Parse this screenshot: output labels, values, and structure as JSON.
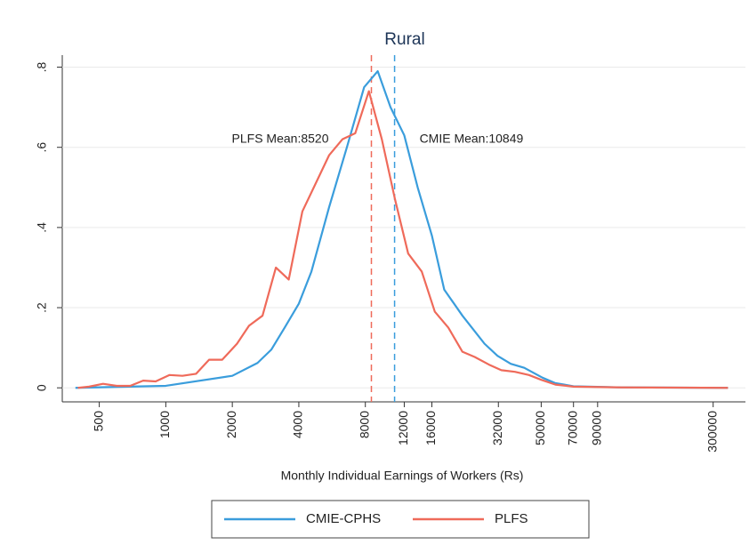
{
  "chart_data": {
    "type": "line",
    "title": "Rural",
    "x_label": "Monthly Individual Earnings of Workers (Rs)",
    "x_log": true,
    "xlim": [
      340,
      420000
    ],
    "xticks": [
      500,
      1000,
      2000,
      4000,
      8000,
      12000,
      16000,
      32000,
      50000,
      70000,
      90000,
      300000
    ],
    "ylim": [
      -0.035,
      0.83
    ],
    "yticks": [
      {
        "value": 0,
        "label": "0"
      },
      {
        "value": 0.2,
        "label": ".2"
      },
      {
        "value": 0.4,
        "label": ".4"
      },
      {
        "value": 0.6,
        "label": ".6"
      },
      {
        "value": 0.8,
        "label": ".8"
      }
    ],
    "legend": "bottom",
    "series": [
      {
        "name": "CMIE-CPHS",
        "color": "#3a9ddc",
        "x": [
          390,
          1000,
          2000,
          2600,
          3000,
          3450,
          4000,
          4560,
          5480,
          6600,
          7900,
          9100,
          10400,
          12000,
          13800,
          16000,
          18200,
          22000,
          27700,
          31700,
          36400,
          41900,
          50800,
          57700,
          70000,
          115000,
          350000
        ],
        "values": [
          0,
          0.005,
          0.03,
          0.062,
          0.095,
          0.15,
          0.21,
          0.29,
          0.45,
          0.6,
          0.75,
          0.79,
          0.7,
          0.63,
          0.5,
          0.38,
          0.245,
          0.18,
          0.11,
          0.08,
          0.06,
          0.05,
          0.025,
          0.012,
          0.004,
          0.001,
          0
        ]
      },
      {
        "name": "PLFS",
        "color": "#ef6a5a",
        "x": [
          400,
          450,
          520,
          600,
          690,
          790,
          900,
          1040,
          1190,
          1370,
          1570,
          1800,
          2100,
          2380,
          2740,
          3150,
          3600,
          4150,
          4770,
          5480,
          6300,
          7200,
          8300,
          9500,
          10900,
          12500,
          14400,
          16500,
          19000,
          22000,
          25000,
          29000,
          33000,
          38000,
          44000,
          50000,
          58000,
          70000,
          115000,
          350000
        ],
        "values": [
          0,
          0.003,
          0.01,
          0.005,
          0.005,
          0.018,
          0.016,
          0.032,
          0.03,
          0.035,
          0.07,
          0.07,
          0.11,
          0.155,
          0.18,
          0.3,
          0.27,
          0.44,
          0.51,
          0.58,
          0.62,
          0.635,
          0.74,
          0.62,
          0.47,
          0.335,
          0.29,
          0.19,
          0.15,
          0.09,
          0.077,
          0.058,
          0.044,
          0.04,
          0.032,
          0.02,
          0.008,
          0.003,
          0.001,
          0
        ]
      }
    ],
    "annotations": [
      {
        "text": "PLFS Mean:8520",
        "x": 8520,
        "color": "#ef6a5a"
      },
      {
        "text": "CMIE Mean:10849",
        "x": 10849,
        "color": "#3a9ddc"
      }
    ]
  }
}
